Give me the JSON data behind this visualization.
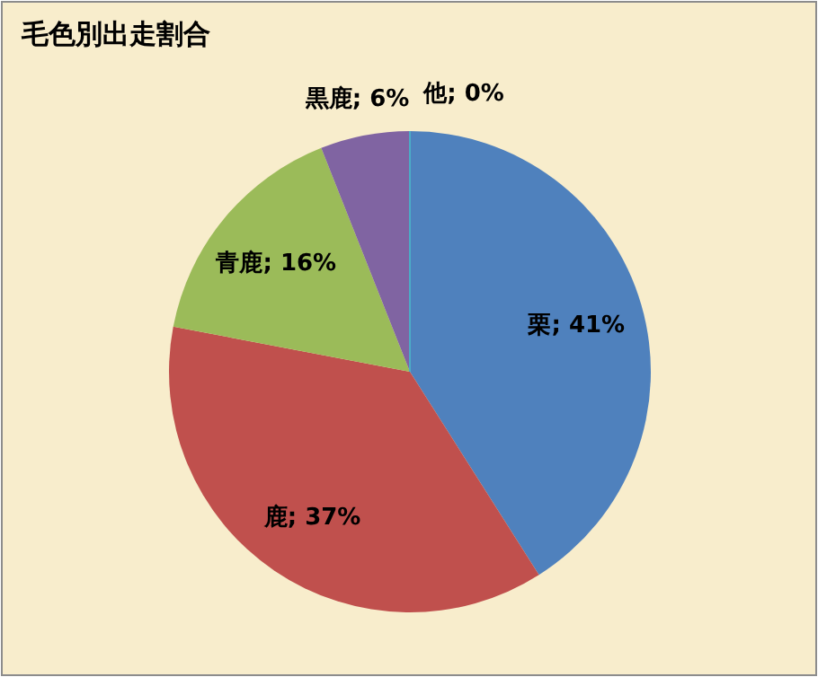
{
  "chart_data": {
    "type": "pie",
    "title": "毛色別出走割合",
    "categories": [
      "栗",
      "鹿",
      "青鹿",
      "黒鹿",
      "他"
    ],
    "values": [
      41,
      37,
      16,
      6,
      0
    ],
    "value_labels": [
      "; 41%",
      "; 37%",
      "; 16%",
      "; 6%",
      "; 0%"
    ],
    "colors": [
      "#4f81bd",
      "#c0504d",
      "#9bbb59",
      "#8064a2",
      "#4bacc6"
    ]
  }
}
